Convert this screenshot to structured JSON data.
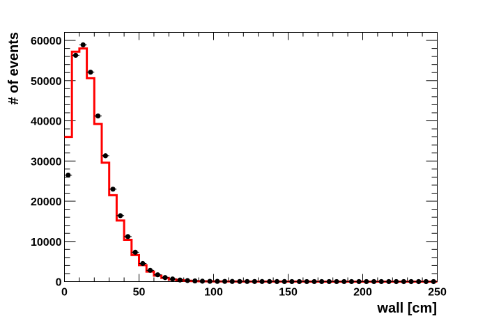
{
  "chart_data": {
    "type": "line",
    "title": "",
    "xlabel": "wall [cm]",
    "ylabel": "# of events",
    "xlim": [
      0,
      250
    ],
    "ylim": [
      0,
      62000
    ],
    "x_ticks": [
      "0",
      "50",
      "100",
      "150",
      "200",
      "250"
    ],
    "y_ticks": [
      "0",
      "10000",
      "20000",
      "30000",
      "40000",
      "50000",
      "60000"
    ],
    "bin_width": 5,
    "grid": false,
    "legend": "none",
    "series": [
      {
        "kind": "points",
        "color": "#000000",
        "x": [
          2.5,
          7.5,
          12.5,
          17.5,
          22.5,
          27.5,
          32.5,
          37.5,
          42.5,
          47.5,
          52.5,
          57.5,
          62.5,
          67.5,
          72.5,
          77.5,
          82.5,
          87.5,
          92.5,
          97.5,
          102.5,
          107.5,
          112.5,
          117.5,
          122.5,
          127.5,
          132.5,
          137.5,
          142.5,
          147.5,
          152.5,
          157.5,
          162.5,
          167.5,
          172.5,
          177.5,
          182.5,
          187.5,
          192.5,
          197.5,
          202.5,
          207.5,
          212.5,
          217.5,
          222.5,
          227.5,
          232.5,
          237.5,
          242.5,
          247.5
        ],
        "y": [
          26500,
          56300,
          58900,
          52100,
          41200,
          31300,
          23000,
          16400,
          11200,
          7300,
          4500,
          2800,
          1700,
          1000,
          650,
          400,
          260,
          170,
          110,
          80,
          60,
          50,
          40,
          35,
          30,
          25,
          22,
          20,
          18,
          16,
          15,
          14,
          13,
          12,
          11,
          10,
          10,
          9,
          9,
          8,
          8,
          7,
          7,
          7,
          6,
          6,
          6,
          5,
          5,
          5
        ]
      },
      {
        "kind": "histogram",
        "color": "#ff0000",
        "x": [
          2.5,
          7.5,
          12.5,
          17.5,
          22.5,
          27.5,
          32.5,
          37.5,
          42.5,
          47.5,
          52.5,
          57.5,
          62.5,
          67.5,
          72.5,
          77.5,
          82.5,
          87.5,
          92.5,
          97.5,
          102.5,
          107.5,
          112.5,
          117.5,
          122.5,
          127.5,
          132.5,
          137.5,
          142.5,
          147.5,
          152.5,
          157.5,
          162.5,
          167.5,
          172.5,
          177.5,
          182.5,
          187.5,
          192.5,
          197.5,
          202.5,
          207.5,
          212.5,
          217.5,
          222.5,
          227.5,
          232.5,
          237.5,
          242.5,
          247.5
        ],
        "y": [
          36000,
          57200,
          58000,
          50600,
          39200,
          29600,
          21500,
          15200,
          10400,
          6600,
          4100,
          2500,
          1500,
          900,
          550,
          340,
          220,
          140,
          90,
          65,
          50,
          42,
          35,
          30,
          26,
          22,
          20,
          18,
          16,
          14,
          13,
          12,
          11,
          10,
          10,
          9,
          9,
          8,
          8,
          7,
          7,
          7,
          6,
          6,
          6,
          5,
          5,
          5,
          5,
          5
        ]
      }
    ]
  }
}
